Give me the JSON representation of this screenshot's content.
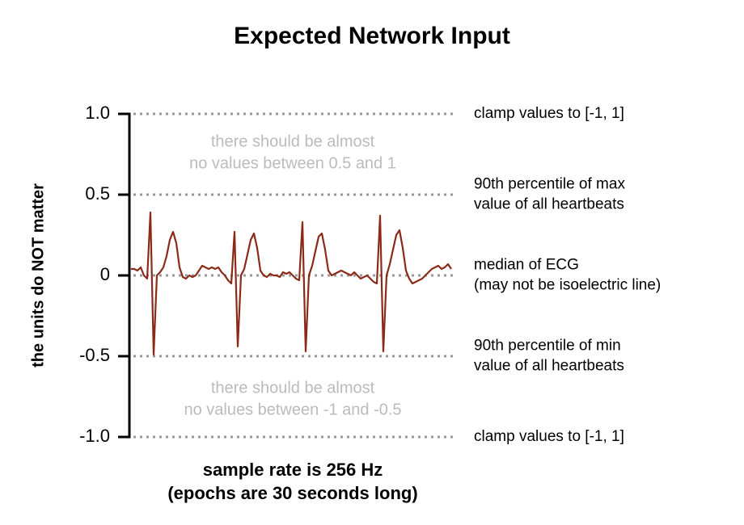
{
  "chart_data": {
    "type": "line",
    "title": "Expected Network Input",
    "ylabel": "the units do NOT matter",
    "xlabel": [
      "sample rate is 256 Hz",
      "(epochs are 30 seconds long)"
    ],
    "color": "#8b2a18",
    "values": [
      0.04,
      0.04,
      0.03,
      0.05,
      0.0,
      -0.02,
      0.39,
      -0.49,
      0.0,
      0.02,
      0.05,
      0.12,
      0.22,
      0.27,
      0.2,
      0.05,
      -0.01,
      -0.02,
      0.0,
      -0.01,
      0.0,
      0.03,
      0.06,
      0.05,
      0.04,
      0.05,
      0.04,
      0.05,
      0.02,
      0.0,
      -0.03,
      -0.05,
      0.27,
      -0.44,
      0.0,
      0.04,
      0.13,
      0.22,
      0.26,
      0.17,
      0.03,
      0.0,
      -0.01,
      0.01,
      0.0,
      0.0,
      -0.01,
      0.02,
      0.01,
      0.02,
      0.0,
      -0.02,
      -0.03,
      0.33,
      -0.47,
      0.0,
      0.06,
      0.15,
      0.24,
      0.26,
      0.16,
      0.03,
      0.0,
      0.01,
      0.02,
      0.03,
      0.02,
      0.01,
      0.0,
      0.02,
      0.0,
      -0.02,
      -0.01,
      0.0,
      -0.02,
      -0.04,
      -0.05,
      0.37,
      -0.47,
      0.0,
      0.07,
      0.16,
      0.25,
      0.28,
      0.17,
      0.03,
      -0.02,
      -0.05,
      -0.04,
      -0.03,
      -0.02,
      0.0,
      0.02,
      0.04,
      0.05,
      0.06,
      0.04,
      0.05,
      0.07,
      0.04
    ],
    "ylim": [
      -1,
      1
    ],
    "yticks": [
      {
        "value": -1,
        "label": "-1.0"
      },
      -0.5,
      0,
      0.5,
      {
        "value": 1,
        "label": "1.0"
      }
    ],
    "grid": true,
    "annotations": [
      {
        "y": 1,
        "lines": [
          "clamp values to [-1, 1]"
        ]
      },
      {
        "y": 0.5,
        "lines": [
          "90th percentile of max",
          "value of all heartbeats"
        ]
      },
      {
        "y": 0,
        "lines": [
          "median of ECG",
          "(may not be isoelectric line)"
        ]
      },
      {
        "y": -0.5,
        "lines": [
          "90th percentile of min",
          "value of all heartbeats"
        ]
      },
      {
        "y": -1,
        "lines": [
          "clamp values to [-1, 1]"
        ]
      }
    ],
    "notes": [
      [
        "there should be almost",
        "no values between 0.5 and 1"
      ],
      [
        "there should be almost",
        "no values between -1 and -0.5"
      ]
    ]
  }
}
